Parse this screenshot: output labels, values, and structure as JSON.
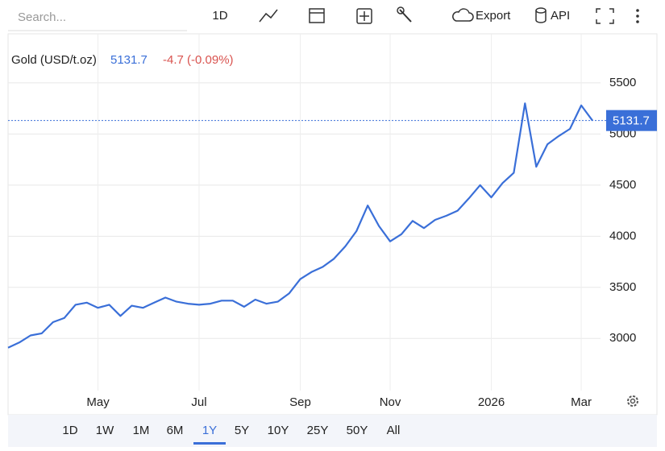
{
  "toolbar": {
    "search_placeholder": "Search...",
    "interval": "1D",
    "export": "Export",
    "api": "API"
  },
  "chart_data": {
    "type": "line",
    "title": "Gold (USD/t.oz)",
    "last_value": 5131.7,
    "change_label": "-4.7 (-0.09%)",
    "categories": [
      null,
      null,
      null,
      null,
      null,
      null,
      null,
      null,
      "May",
      null,
      null,
      null,
      null,
      null,
      null,
      null,
      null,
      "Jul",
      null,
      null,
      null,
      null,
      null,
      null,
      null,
      null,
      "Sep",
      null,
      null,
      null,
      null,
      null,
      null,
      null,
      "Nov",
      null,
      null,
      null,
      null,
      null,
      null,
      null,
      null,
      "2026",
      null,
      null,
      null,
      null,
      null,
      null,
      null,
      "Mar",
      null
    ],
    "series": [
      {
        "name": "Gold",
        "color": "#3a6fd8",
        "values": [
          2910,
          2960,
          3030,
          3050,
          3160,
          3200,
          3330,
          3350,
          3300,
          3330,
          3220,
          3320,
          3300,
          3350,
          3400,
          3360,
          3340,
          3330,
          3340,
          3370,
          3370,
          3310,
          3380,
          3340,
          3360,
          3440,
          3580,
          3650,
          3700,
          3780,
          3900,
          4050,
          4300,
          4100,
          3950,
          4020,
          4150,
          4080,
          4160,
          4200,
          4250,
          4370,
          4500,
          4380,
          4520,
          4620,
          5300,
          4680,
          4900,
          4980,
          5050,
          5280,
          5131.7
        ]
      }
    ],
    "ylim": [
      2490,
      5980
    ],
    "yticks": [
      3000,
      3500,
      4000,
      4500,
      5000,
      5500
    ],
    "grid": true
  },
  "ranges": {
    "labels": [
      "1D",
      "1W",
      "1M",
      "6M",
      "1Y",
      "5Y",
      "10Y",
      "25Y",
      "50Y",
      "All"
    ],
    "selected": 4
  }
}
